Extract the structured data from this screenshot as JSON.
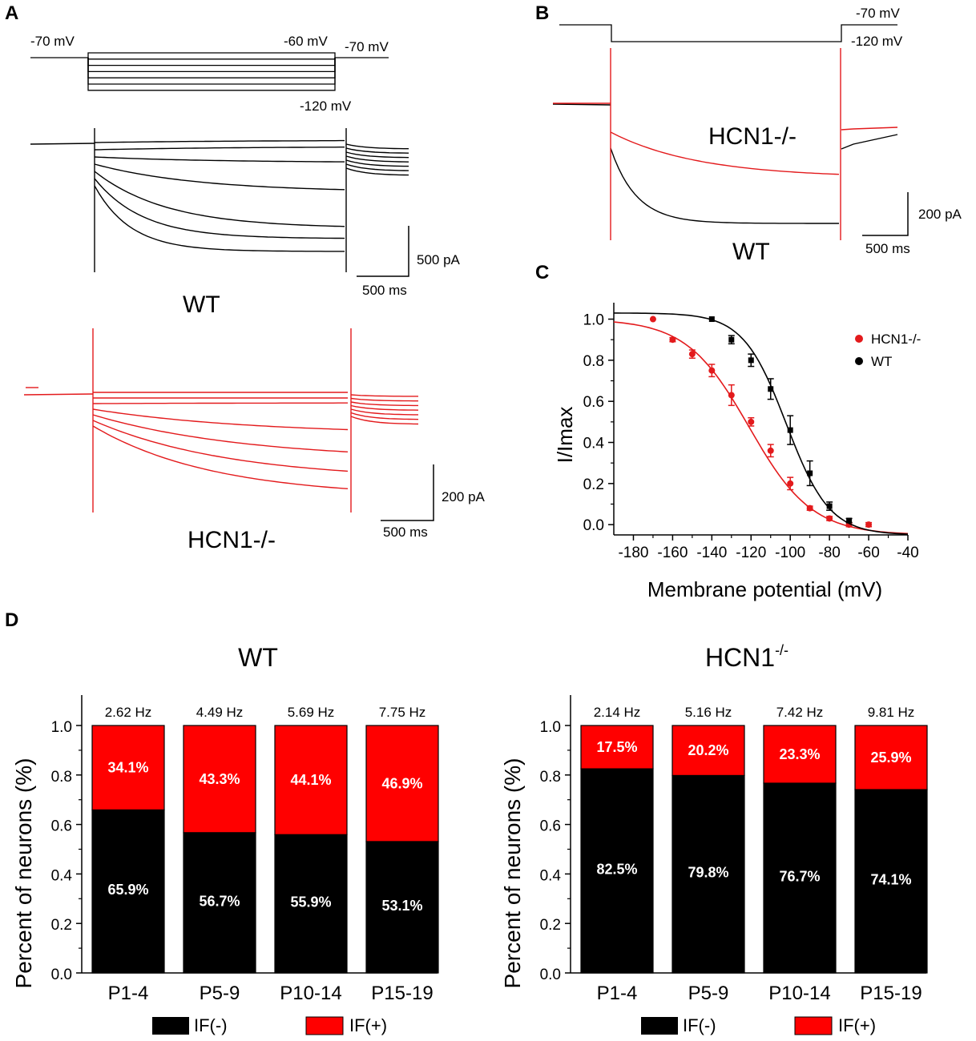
{
  "panels": {
    "a": "A",
    "b": "B",
    "c": "C",
    "d": "D"
  },
  "panel_a": {
    "protocol": {
      "hold": "-70 mV",
      "step_top": "-60 mV",
      "return": "-70 mV",
      "step_bottom": "-120 mV"
    },
    "wt_label": "WT",
    "ko_label": "HCN1-/-",
    "wt_scale": {
      "current": "500 pA",
      "time": "500 ms"
    },
    "ko_scale": {
      "current": "200 pA",
      "time": "500 ms"
    },
    "colors": {
      "wt": "#000000",
      "ko": "#e31a1c"
    }
  },
  "panel_b": {
    "protocol": {
      "hold": "-70 mV",
      "step": "-120 mV"
    },
    "ko_label": "HCN1-/-",
    "wt_label": "WT",
    "scale": {
      "current": "200 pA",
      "time": "500 ms"
    }
  },
  "chart_data": [
    {
      "id": "C",
      "type": "scatter",
      "xlabel": "Membrane potential (mV)",
      "ylabel": "I/Imax",
      "xlim": [
        -190,
        -40
      ],
      "ylim": [
        -0.05,
        1.08
      ],
      "xticks": [
        -180,
        -160,
        -140,
        -120,
        -100,
        -80,
        -60,
        -40
      ],
      "xtick_labels": [
        "-180",
        "-160",
        "-140",
        "-120",
        "-100",
        "-80",
        "-60",
        "-40"
      ],
      "yticks": [
        0,
        0.2,
        0.4,
        0.6,
        0.8,
        1.0
      ],
      "ytick_labels": [
        "0.0",
        "0.2",
        "0.4",
        "0.6",
        "0.8",
        "1.0"
      ],
      "legend_position": "top-right",
      "series": [
        {
          "name": "HCN1-/-",
          "color": "#e31a1c",
          "marker": "circle",
          "x": [
            -170,
            -160,
            -150,
            -140,
            -130,
            -120,
            -110,
            -100,
            -90,
            -80,
            -70,
            -60
          ],
          "y": [
            1.0,
            0.9,
            0.83,
            0.75,
            0.63,
            0.5,
            0.36,
            0.2,
            0.08,
            0.03,
            0.0,
            0.0
          ],
          "err": [
            0,
            0.01,
            0.02,
            0.03,
            0.05,
            0.02,
            0.03,
            0.03,
            0.01,
            0.01,
            0.01,
            0.01
          ],
          "fit": {
            "v_half": -121,
            "k": 16
          }
        },
        {
          "name": "WT",
          "color": "#000000",
          "marker": "square",
          "x": [
            -140,
            -130,
            -120,
            -110,
            -100,
            -90,
            -80,
            -70
          ],
          "y": [
            1.0,
            0.9,
            0.8,
            0.66,
            0.46,
            0.25,
            0.09,
            0.02
          ],
          "err": [
            0,
            0.02,
            0.03,
            0.05,
            0.07,
            0.06,
            0.02,
            0.01
          ],
          "fit": {
            "v_half": -102,
            "k": 11
          }
        }
      ]
    },
    {
      "id": "D-WT",
      "type": "bar",
      "title": "WT",
      "ylabel": "Percent of neurons (%)",
      "ylim": [
        0,
        1.0
      ],
      "yticks": [
        0,
        0.2,
        0.4,
        0.6,
        0.8,
        1.0
      ],
      "ytick_labels": [
        "0.0",
        "0.2",
        "0.4",
        "0.6",
        "0.8",
        "1.0"
      ],
      "categories": [
        "P1-4",
        "P5-9",
        "P10-14",
        "P15-19"
      ],
      "top_labels": [
        "2.62 Hz",
        "4.49 Hz",
        "5.69 Hz",
        "7.75 Hz"
      ],
      "series": [
        {
          "name": "IF(-)",
          "color": "#000000",
          "values": [
            0.659,
            0.567,
            0.559,
            0.531
          ],
          "labels": [
            "65.9%",
            "56.7%",
            "55.9%",
            "53.1%"
          ]
        },
        {
          "name": "IF(+)",
          "color": "#ff0000",
          "values": [
            0.341,
            0.433,
            0.441,
            0.469
          ],
          "labels": [
            "34.1%",
            "43.3%",
            "44.1%",
            "46.9%"
          ]
        }
      ]
    },
    {
      "id": "D-KO",
      "type": "bar",
      "title": "HCN1",
      "title_superscript": "-/-",
      "ylabel": "Percent of neurons (%)",
      "ylim": [
        0,
        1.0
      ],
      "yticks": [
        0,
        0.2,
        0.4,
        0.6,
        0.8,
        1.0
      ],
      "ytick_labels": [
        "0.0",
        "0.2",
        "0.4",
        "0.6",
        "0.8",
        "1.0"
      ],
      "categories": [
        "P1-4",
        "P5-9",
        "P10-14",
        "P15-19"
      ],
      "top_labels": [
        "2.14 Hz",
        "5.16 Hz",
        "7.42 Hz",
        "9.81 Hz"
      ],
      "series": [
        {
          "name": "IF(-)",
          "color": "#000000",
          "values": [
            0.825,
            0.798,
            0.767,
            0.741
          ],
          "labels": [
            "82.5%",
            "79.8%",
            "76.7%",
            "74.1%"
          ]
        },
        {
          "name": "IF(+)",
          "color": "#ff0000",
          "values": [
            0.175,
            0.202,
            0.233,
            0.259
          ],
          "labels": [
            "17.5%",
            "20.2%",
            "23.3%",
            "25.9%"
          ]
        }
      ]
    }
  ]
}
